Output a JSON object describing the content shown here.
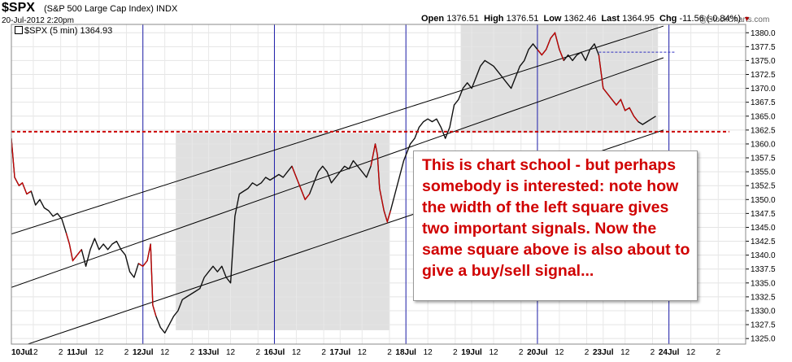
{
  "header": {
    "symbol": "$SPX",
    "name": "(S&P 500 Large Cap Index) INDX",
    "date": "20-Jul-2012 2:20pm",
    "series_label": "$SPX (5 min) 1364.93",
    "logo": "@StockCharts.com",
    "ohlc": {
      "open_label": "Open",
      "open": "1376.51",
      "high_label": "High",
      "high": "1376.51",
      "low_label": "Low",
      "low": "1362.46",
      "last_label": "Last",
      "last": "1364.95",
      "chg_label": "Chg",
      "chg": "-11.56 (-0.84%)"
    }
  },
  "annotation": "This is chart school - but perhaps somebody is interested: note how the width of the left square gives two important signals. Now the same square above is also about to give a buy/sell signal...",
  "colors": {
    "price": "#111111",
    "down_highlight": "#cc0000",
    "channel": "#000000",
    "day_separator": "#1e1eaa",
    "support_line": "#cc0000",
    "box_fill": "#e0e0e0",
    "annotation_text": "#d00000"
  },
  "chart_data": {
    "type": "line",
    "title": "$SPX (5 min) 1364.93",
    "y_ticks": [
      1325.0,
      1327.5,
      1330.0,
      1332.5,
      1335.0,
      1337.5,
      1340.0,
      1342.5,
      1345.0,
      1347.5,
      1350.0,
      1352.5,
      1355.0,
      1357.5,
      1360.0,
      1362.5,
      1365.0,
      1367.5,
      1370.0,
      1372.5,
      1375.0,
      1377.5,
      1380.0
    ],
    "ylim": [
      1324,
      1381.5
    ],
    "xlim": [
      0,
      67
    ],
    "x_ticks": [
      {
        "x": 0,
        "label": "10Jul",
        "bold": true
      },
      {
        "x": 2,
        "label": "12"
      },
      {
        "x": 4.5,
        "label": "2"
      },
      {
        "x": 6,
        "label": "11Jul",
        "bold": true
      },
      {
        "x": 8,
        "label": "12"
      },
      {
        "x": 10.5,
        "label": "2"
      },
      {
        "x": 12,
        "label": "12Jul",
        "bold": true
      },
      {
        "x": 14,
        "label": "12"
      },
      {
        "x": 16.5,
        "label": "2"
      },
      {
        "x": 18,
        "label": "13Jul",
        "bold": true
      },
      {
        "x": 20,
        "label": "12"
      },
      {
        "x": 22.5,
        "label": "2"
      },
      {
        "x": 24,
        "label": "16Jul",
        "bold": true
      },
      {
        "x": 26,
        "label": "12"
      },
      {
        "x": 28.5,
        "label": "2"
      },
      {
        "x": 30,
        "label": "17Jul",
        "bold": true
      },
      {
        "x": 32,
        "label": "12"
      },
      {
        "x": 34.5,
        "label": "2"
      },
      {
        "x": 36,
        "label": "18Jul",
        "bold": true
      },
      {
        "x": 38,
        "label": "12"
      },
      {
        "x": 40.5,
        "label": "2"
      },
      {
        "x": 42,
        "label": "19Jul",
        "bold": true
      },
      {
        "x": 44,
        "label": "12"
      },
      {
        "x": 46.5,
        "label": "2"
      },
      {
        "x": 48,
        "label": "20Jul",
        "bold": true
      },
      {
        "x": 50,
        "label": "12"
      },
      {
        "x": 52.5,
        "label": "2"
      },
      {
        "x": 54,
        "label": "23Jul",
        "bold": true
      },
      {
        "x": 56,
        "label": "12"
      },
      {
        "x": 58.5,
        "label": "2"
      },
      {
        "x": 60,
        "label": "24Jul",
        "bold": true
      },
      {
        "x": 62,
        "label": "12"
      },
      {
        "x": 64.5,
        "label": "2"
      }
    ],
    "day_separators": [
      12,
      24,
      36,
      48,
      60
    ],
    "series": [
      {
        "values": [
          [
            0,
            1361
          ],
          [
            0.3,
            1354
          ],
          [
            0.7,
            1352.5
          ],
          [
            1,
            1353
          ],
          [
            1.4,
            1351
          ],
          [
            1.8,
            1351.5
          ],
          [
            2.2,
            1349
          ],
          [
            2.6,
            1350
          ],
          [
            3,
            1348.5
          ],
          [
            3.4,
            1348
          ],
          [
            3.8,
            1347
          ],
          [
            4.2,
            1347.5
          ],
          [
            4.6,
            1346.5
          ],
          [
            5,
            1344
          ],
          [
            5.3,
            1342
          ],
          [
            5.6,
            1339
          ],
          [
            6,
            1340
          ],
          [
            6.4,
            1341
          ],
          [
            6.8,
            1338
          ],
          [
            7.2,
            1341
          ],
          [
            7.6,
            1343
          ],
          [
            8,
            1341
          ],
          [
            8.4,
            1342
          ],
          [
            8.8,
            1341
          ],
          [
            9.2,
            1342
          ],
          [
            9.6,
            1342.5
          ],
          [
            10,
            1341
          ],
          [
            10.4,
            1340
          ],
          [
            10.8,
            1337
          ],
          [
            11.2,
            1336
          ],
          [
            11.6,
            1338.5
          ],
          [
            12,
            1338
          ],
          [
            12.4,
            1339
          ],
          [
            12.7,
            1342
          ],
          [
            12.9,
            1331
          ],
          [
            13.2,
            1329
          ],
          [
            13.6,
            1327
          ],
          [
            14,
            1326
          ],
          [
            14.4,
            1327.5
          ],
          [
            14.8,
            1329
          ],
          [
            15.2,
            1330
          ],
          [
            15.6,
            1332
          ],
          [
            16,
            1332.5
          ],
          [
            16.4,
            1333
          ],
          [
            16.8,
            1333.5
          ],
          [
            17.2,
            1334
          ],
          [
            17.6,
            1336
          ],
          [
            18,
            1337
          ],
          [
            18.4,
            1338
          ],
          [
            18.8,
            1337
          ],
          [
            19.2,
            1338
          ],
          [
            19.6,
            1336
          ],
          [
            20,
            1335
          ],
          [
            20.4,
            1347
          ],
          [
            20.8,
            1351
          ],
          [
            21.2,
            1351.5
          ],
          [
            21.6,
            1352
          ],
          [
            22,
            1353
          ],
          [
            22.4,
            1352.5
          ],
          [
            22.8,
            1353
          ],
          [
            23.2,
            1354
          ],
          [
            23.6,
            1353.5
          ],
          [
            24,
            1354
          ],
          [
            24.4,
            1354.5
          ],
          [
            24.8,
            1354
          ],
          [
            25.2,
            1355
          ],
          [
            25.6,
            1356
          ],
          [
            26,
            1354
          ],
          [
            26.4,
            1352
          ],
          [
            26.8,
            1350
          ],
          [
            27.2,
            1351
          ],
          [
            27.6,
            1353
          ],
          [
            28,
            1355
          ],
          [
            28.4,
            1356
          ],
          [
            28.8,
            1355
          ],
          [
            29.2,
            1353
          ],
          [
            29.6,
            1354
          ],
          [
            30,
            1355
          ],
          [
            30.4,
            1356
          ],
          [
            30.8,
            1355.5
          ],
          [
            31.2,
            1357
          ],
          [
            31.6,
            1356
          ],
          [
            32,
            1355
          ],
          [
            32.4,
            1354
          ],
          [
            32.8,
            1356
          ],
          [
            33.2,
            1360
          ],
          [
            33.4,
            1358
          ],
          [
            33.6,
            1352
          ],
          [
            34,
            1348
          ],
          [
            34.3,
            1346
          ],
          [
            34.6,
            1348
          ],
          [
            35,
            1351
          ],
          [
            35.4,
            1354
          ],
          [
            35.8,
            1357
          ],
          [
            36,
            1358
          ],
          [
            36.4,
            1360
          ],
          [
            36.8,
            1361
          ],
          [
            37.2,
            1363
          ],
          [
            37.6,
            1364
          ],
          [
            38,
            1364.5
          ],
          [
            38.4,
            1364
          ],
          [
            38.8,
            1364.5
          ],
          [
            39.2,
            1363
          ],
          [
            39.6,
            1361
          ],
          [
            40,
            1363
          ],
          [
            40.4,
            1367
          ],
          [
            40.8,
            1368
          ],
          [
            41.2,
            1370
          ],
          [
            41.6,
            1371
          ],
          [
            42,
            1370
          ],
          [
            42.4,
            1372
          ],
          [
            42.8,
            1374
          ],
          [
            43.2,
            1375
          ],
          [
            43.6,
            1374.5
          ],
          [
            44,
            1374
          ],
          [
            44.4,
            1373
          ],
          [
            44.8,
            1372
          ],
          [
            45.2,
            1371
          ],
          [
            45.6,
            1370
          ],
          [
            46,
            1372
          ],
          [
            46.4,
            1374
          ],
          [
            46.8,
            1375
          ],
          [
            47.2,
            1377
          ],
          [
            47.6,
            1378
          ],
          [
            48,
            1377
          ],
          [
            48.4,
            1376
          ],
          [
            48.8,
            1377
          ],
          [
            49.2,
            1379
          ],
          [
            49.6,
            1380
          ],
          [
            50,
            1377
          ],
          [
            50.4,
            1375
          ],
          [
            50.8,
            1376
          ],
          [
            51.2,
            1375
          ],
          [
            51.6,
            1376
          ],
          [
            52,
            1376.5
          ],
          [
            52.4,
            1375
          ],
          [
            52.8,
            1377
          ],
          [
            53.2,
            1378
          ],
          [
            53.6,
            1376
          ],
          [
            54,
            1370
          ],
          [
            54.4,
            1369
          ],
          [
            54.8,
            1368
          ],
          [
            55.2,
            1367
          ],
          [
            55.6,
            1368
          ],
          [
            56,
            1366
          ],
          [
            56.4,
            1366.5
          ],
          [
            56.8,
            1365
          ],
          [
            57.2,
            1364
          ],
          [
            57.6,
            1363.5
          ],
          [
            58,
            1364
          ],
          [
            58.4,
            1364.5
          ],
          [
            58.8,
            1365
          ]
        ]
      }
    ],
    "red_segments": [
      [
        0,
        2
      ],
      [
        4.8,
        6.5
      ],
      [
        11.6,
        13.4
      ],
      [
        25.6,
        27.2
      ],
      [
        32.8,
        34.6
      ],
      [
        47.8,
        50.6
      ],
      [
        53.6,
        57.4
      ]
    ],
    "channel_lines": [
      {
        "from": [
          0,
          1343.8
        ],
        "to": [
          59.5,
          1381.2
        ]
      },
      {
        "from": [
          0,
          1334.2
        ],
        "to": [
          59.5,
          1375.5
        ]
      },
      {
        "from": [
          0,
          1323
        ],
        "to": [
          59.5,
          1362.5
        ]
      }
    ],
    "support_line": {
      "y": 1362.2,
      "x_range": [
        0,
        65.5
      ]
    },
    "blue_dashed_line": {
      "y": 1376.5,
      "x_range": [
        53.6,
        60.5
      ]
    },
    "shaded_boxes": [
      {
        "x_range": [
          15,
          34.5
        ],
        "y_range": [
          1326.5,
          1362
        ]
      },
      {
        "x_range": [
          41,
          59
        ],
        "y_range": [
          1362,
          1381.5
        ]
      }
    ]
  }
}
